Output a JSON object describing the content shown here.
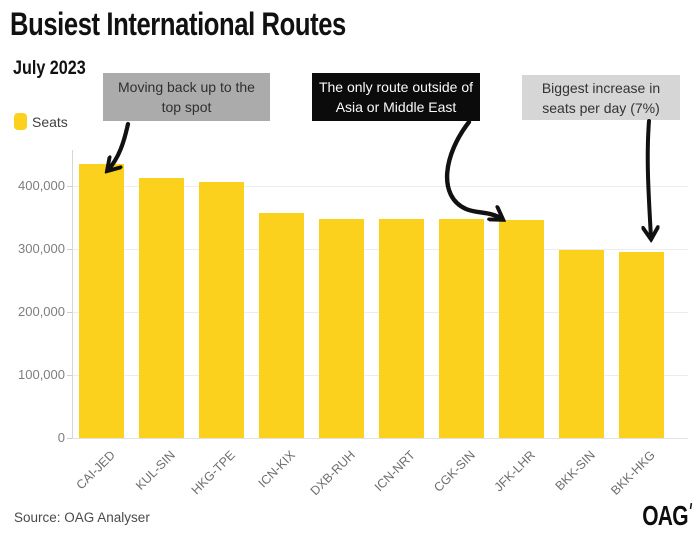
{
  "header": {
    "title": "Busiest International Routes",
    "subtitle": "July 2023"
  },
  "legend": {
    "label": "Seats",
    "swatch_color": "#FCD11D"
  },
  "annotations": [
    {
      "text": "Moving back up to the top spot",
      "bg": "#ABABAB",
      "fg": "#2F2F2F",
      "target": "CAI-JED"
    },
    {
      "text": "The only route outside of Asia or Middle East",
      "bg": "#0B0B0B",
      "fg": "#FAFAFA",
      "target": "JFK-LHR"
    },
    {
      "text": "Biggest increase in seats per day (7%)",
      "bg": "#D6D6D6",
      "fg": "#333333",
      "target": "BKK-HKG"
    }
  ],
  "chart_data": {
    "type": "bar",
    "title": "Busiest International Routes",
    "subtitle": "July 2023",
    "series_name": "Seats",
    "categories": [
      "CAI-JED",
      "KUL-SIN",
      "HKG-TPE",
      "ICN-KIX",
      "DXB-RUH",
      "ICN-NRT",
      "CGK-SIN",
      "JFK-LHR",
      "BKK-SIN",
      "BKK-HKG"
    ],
    "values": [
      435000,
      413000,
      406000,
      357000,
      348000,
      347000,
      348000,
      346000,
      299000,
      296000
    ],
    "xlabel": "",
    "ylabel": "",
    "ylim": [
      0,
      450000
    ],
    "yticks": [
      0,
      100000,
      200000,
      300000,
      400000
    ],
    "ytick_labels": [
      "0",
      "100,000",
      "200,000",
      "300,000",
      "400,000"
    ],
    "bar_color": "#FCD11D",
    "grid": true,
    "legend_position": "top-left"
  },
  "footer": {
    "source": "Source: OAG Analyser",
    "logo": "OAG"
  }
}
